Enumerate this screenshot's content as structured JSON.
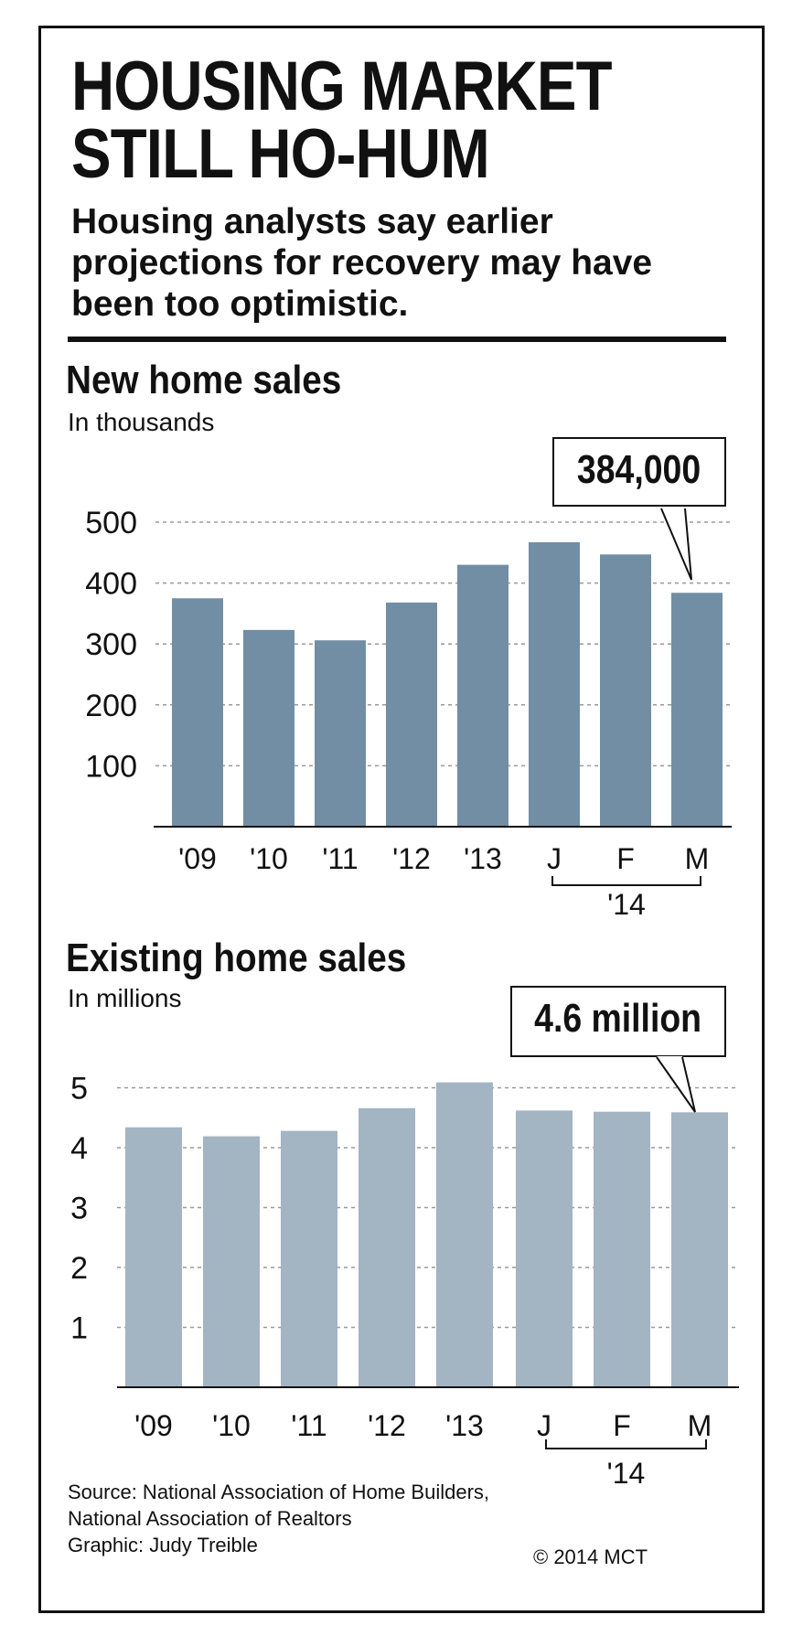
{
  "header": {
    "title_line1": "HOUSING MARKET",
    "title_line2": "STILL HO-HUM",
    "subtitle": "Housing analysts say earlier projections for recovery may have been too optimistic.",
    "subtitle_line1": "Housing analysts say earlier",
    "subtitle_line2": "projections for recovery may have",
    "subtitle_line3": "been too optimistic."
  },
  "chart_data": [
    {
      "type": "bar",
      "title": "New home sales",
      "subtitle": "In thousands",
      "categories": [
        "'09",
        "'10",
        "'11",
        "'12",
        "'13",
        "J",
        "F",
        "M"
      ],
      "group_label": "'14",
      "values": [
        375,
        323,
        306,
        368,
        430,
        467,
        447,
        384
      ],
      "ylim": [
        0,
        500
      ],
      "yticks": [
        100,
        200,
        300,
        400,
        500
      ],
      "grid": true,
      "bar_color": "#728ea4",
      "annotation": {
        "text": "384,000",
        "points_to": "M"
      }
    },
    {
      "type": "bar",
      "title": "Existing home sales",
      "subtitle": "In millions",
      "categories": [
        "'09",
        "'10",
        "'11",
        "'12",
        "'13",
        "J",
        "F",
        "M"
      ],
      "group_label": "'14",
      "values": [
        4.34,
        4.19,
        4.28,
        4.66,
        5.09,
        4.62,
        4.6,
        4.59
      ],
      "ylim": [
        0,
        5
      ],
      "yticks": [
        1,
        2,
        3,
        4,
        5
      ],
      "grid": true,
      "bar_color": "#a3b4c3",
      "annotation": {
        "text": "4.6 million",
        "points_to": "M"
      }
    }
  ],
  "footer": {
    "source_line1": "Source: National Association of Home Builders,",
    "source_line2": "National Association of Realtors",
    "graphic_credit": "Graphic: Judy Treible",
    "copyright": "© 2014 MCT"
  }
}
